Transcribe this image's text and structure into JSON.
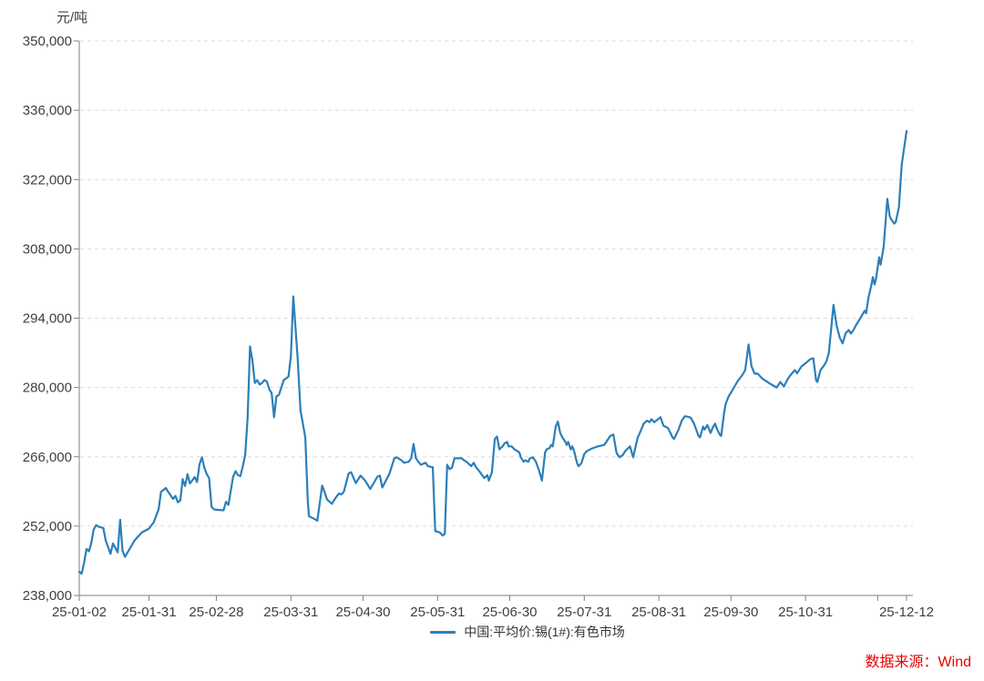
{
  "chart_data": {
    "type": "line",
    "title": "",
    "unit_label": "元/吨",
    "xlabel": "",
    "ylabel": "元/吨",
    "ylim": [
      238000,
      350000
    ],
    "y_ticks": [
      238000,
      252000,
      266000,
      280000,
      294000,
      308000,
      322000,
      336000,
      350000
    ],
    "xlim_days": [
      0,
      344
    ],
    "x_ticks": [
      {
        "day": 0,
        "label": "25-01-02"
      },
      {
        "day": 29,
        "label": "25-01-31"
      },
      {
        "day": 57,
        "label": "25-02-28"
      },
      {
        "day": 88,
        "label": "25-03-31"
      },
      {
        "day": 118,
        "label": "25-04-30"
      },
      {
        "day": 149,
        "label": "25-05-31"
      },
      {
        "day": 179,
        "label": "25-06-30"
      },
      {
        "day": 210,
        "label": "25-07-31"
      },
      {
        "day": 241,
        "label": "25-08-31"
      },
      {
        "day": 271,
        "label": "25-09-30"
      },
      {
        "day": 302,
        "label": "25-10-31"
      },
      {
        "day": 332,
        "label": ""
      },
      {
        "day": 344,
        "label": "25-12-12"
      }
    ],
    "grid": {
      "horizontal": "dashed",
      "color": "#dcdcdc"
    },
    "axis_color": "#808080",
    "tick_label_color": "#404040",
    "legend_position": "bottom-center",
    "legend": [
      {
        "label": "中国:平均价:锡(1#):有色市场",
        "color": "#2b7fb8"
      }
    ],
    "source_note": "数据来源：Wind",
    "source_color": "#e60000",
    "series": [
      {
        "name": "中国:平均价:锡(1#):有色市场",
        "color": "#2b7fb8",
        "width": 2.2,
        "points": [
          [
            0,
            242800
          ],
          [
            1,
            242400
          ],
          [
            2,
            244600
          ],
          [
            3,
            247400
          ],
          [
            4,
            246900
          ],
          [
            5,
            248600
          ],
          [
            6,
            251300
          ],
          [
            7,
            252200
          ],
          [
            8,
            251900
          ],
          [
            10,
            251600
          ],
          [
            11,
            249100
          ],
          [
            13,
            246400
          ],
          [
            14,
            248500
          ],
          [
            16,
            246700
          ],
          [
            17,
            253300
          ],
          [
            18,
            247000
          ],
          [
            19,
            245800
          ],
          [
            23,
            249100
          ],
          [
            26,
            250700
          ],
          [
            29,
            251500
          ],
          [
            31,
            252800
          ],
          [
            33,
            255400
          ],
          [
            34,
            258900
          ],
          [
            36,
            259700
          ],
          [
            37,
            258900
          ],
          [
            39,
            257500
          ],
          [
            40,
            258100
          ],
          [
            41,
            256800
          ],
          [
            42,
            257200
          ],
          [
            43,
            261500
          ],
          [
            44,
            260100
          ],
          [
            45,
            262500
          ],
          [
            46,
            260600
          ],
          [
            48,
            261900
          ],
          [
            49,
            260900
          ],
          [
            50,
            264500
          ],
          [
            51,
            265900
          ],
          [
            52,
            263800
          ],
          [
            53,
            262500
          ],
          [
            54,
            261700
          ],
          [
            55,
            255900
          ],
          [
            56,
            255400
          ],
          [
            57,
            255300
          ],
          [
            60,
            255200
          ],
          [
            61,
            256900
          ],
          [
            62,
            256300
          ],
          [
            64,
            262000
          ],
          [
            65,
            263100
          ],
          [
            66,
            262300
          ],
          [
            67,
            262100
          ],
          [
            68,
            264100
          ],
          [
            69,
            266300
          ],
          [
            70,
            274000
          ],
          [
            71,
            288300
          ],
          [
            72,
            285500
          ],
          [
            73,
            280900
          ],
          [
            74,
            281500
          ],
          [
            75,
            280600
          ],
          [
            76,
            280900
          ],
          [
            77,
            281500
          ],
          [
            78,
            281200
          ],
          [
            79,
            279700
          ],
          [
            80,
            278800
          ],
          [
            81,
            274000
          ],
          [
            82,
            278200
          ],
          [
            83,
            278500
          ],
          [
            85,
            281500
          ],
          [
            87,
            282200
          ],
          [
            88,
            286400
          ],
          [
            89,
            298400
          ],
          [
            90.8,
            285900
          ],
          [
            92,
            275400
          ],
          [
            94,
            269900
          ],
          [
            95,
            257100
          ],
          [
            95.5,
            254000
          ],
          [
            98,
            253400
          ],
          [
            99,
            253100
          ],
          [
            101,
            260200
          ],
          [
            102,
            258900
          ],
          [
            103,
            257400
          ],
          [
            105,
            256500
          ],
          [
            107,
            258000
          ],
          [
            108,
            258600
          ],
          [
            109,
            258400
          ],
          [
            110,
            258900
          ],
          [
            112,
            262600
          ],
          [
            113,
            262900
          ],
          [
            115,
            260700
          ],
          [
            117,
            262200
          ],
          [
            119,
            261100
          ],
          [
            121,
            259500
          ],
          [
            124,
            262000
          ],
          [
            125,
            262200
          ],
          [
            126,
            259800
          ],
          [
            128,
            261700
          ],
          [
            129,
            262600
          ],
          [
            131,
            265700
          ],
          [
            132,
            265900
          ],
          [
            134,
            265300
          ],
          [
            135,
            264800
          ],
          [
            137,
            265000
          ],
          [
            138,
            265700
          ],
          [
            139,
            268600
          ],
          [
            140,
            265700
          ],
          [
            141,
            265000
          ],
          [
            142,
            264400
          ],
          [
            144,
            264800
          ],
          [
            145,
            264100
          ],
          [
            147,
            263900
          ],
          [
            148,
            251000
          ],
          [
            150,
            250700
          ],
          [
            151,
            250100
          ],
          [
            152,
            250400
          ],
          [
            153,
            264400
          ],
          [
            154,
            263500
          ],
          [
            155,
            263800
          ],
          [
            156,
            265700
          ],
          [
            159,
            265700
          ],
          [
            160,
            265300
          ],
          [
            161,
            265000
          ],
          [
            163,
            264100
          ],
          [
            164,
            264800
          ],
          [
            165,
            263900
          ],
          [
            166.5,
            263000
          ],
          [
            168.4,
            261700
          ],
          [
            169.7,
            262300
          ],
          [
            170.3,
            261200
          ],
          [
            171.6,
            262900
          ],
          [
            172.8,
            269600
          ],
          [
            173.7,
            270100
          ],
          [
            174.7,
            267500
          ],
          [
            176,
            268100
          ],
          [
            176.8,
            268700
          ],
          [
            177.9,
            269000
          ],
          [
            178.5,
            268100
          ],
          [
            179.8,
            268100
          ],
          [
            181,
            267500
          ],
          [
            183,
            266900
          ],
          [
            183.6,
            265900
          ],
          [
            184.8,
            265000
          ],
          [
            185.5,
            265300
          ],
          [
            186.7,
            265000
          ],
          [
            187.4,
            265700
          ],
          [
            188.6,
            265900
          ],
          [
            189.9,
            265000
          ],
          [
            191.2,
            263200
          ],
          [
            192.4,
            261200
          ],
          [
            193.7,
            266900
          ],
          [
            194.3,
            267500
          ],
          [
            195.6,
            267800
          ],
          [
            196.2,
            268400
          ],
          [
            196.9,
            268100
          ],
          [
            198.1,
            272100
          ],
          [
            199,
            273100
          ],
          [
            200,
            270800
          ],
          [
            200.9,
            269900
          ],
          [
            202.1,
            269000
          ],
          [
            202.7,
            268400
          ],
          [
            203.3,
            269000
          ],
          [
            204.4,
            267500
          ],
          [
            205,
            268100
          ],
          [
            205.7,
            267200
          ],
          [
            207,
            264700
          ],
          [
            207.6,
            264100
          ],
          [
            208.8,
            264700
          ],
          [
            210,
            266600
          ],
          [
            211.2,
            267200
          ],
          [
            213.3,
            267700
          ],
          [
            215.6,
            268100
          ],
          [
            218.3,
            268400
          ],
          [
            220.8,
            270200
          ],
          [
            222.1,
            270500
          ],
          [
            223.4,
            266800
          ],
          [
            224.6,
            265900
          ],
          [
            225.9,
            266300
          ],
          [
            227.1,
            267200
          ],
          [
            229,
            268100
          ],
          [
            230.3,
            265900
          ],
          [
            232.2,
            269900
          ],
          [
            232.8,
            270500
          ],
          [
            234.7,
            272700
          ],
          [
            236,
            273300
          ],
          [
            237.2,
            273000
          ],
          [
            237.9,
            273600
          ],
          [
            239.1,
            273000
          ],
          [
            241.7,
            274000
          ],
          [
            242.9,
            272300
          ],
          [
            244.8,
            271800
          ],
          [
            246.7,
            269900
          ],
          [
            247.3,
            269600
          ],
          [
            249.2,
            271500
          ],
          [
            250.5,
            273300
          ],
          [
            251.8,
            274200
          ],
          [
            253,
            274100
          ],
          [
            254.3,
            273900
          ],
          [
            255.6,
            272700
          ],
          [
            257.5,
            270200
          ],
          [
            258.1,
            269900
          ],
          [
            259.4,
            272100
          ],
          [
            260,
            271500
          ],
          [
            261.2,
            272400
          ],
          [
            262.5,
            270800
          ],
          [
            263.4,
            271900
          ],
          [
            264.4,
            272700
          ],
          [
            265,
            271800
          ],
          [
            266.3,
            270500
          ],
          [
            266.9,
            270200
          ],
          [
            268.2,
            275100
          ],
          [
            268.8,
            276700
          ],
          [
            270,
            278200
          ],
          [
            271.3,
            279200
          ],
          [
            272.6,
            280300
          ],
          [
            273.8,
            281300
          ],
          [
            275.7,
            282500
          ],
          [
            276.9,
            283500
          ],
          [
            278.3,
            288700
          ],
          [
            279.5,
            284300
          ],
          [
            280.8,
            282800
          ],
          [
            282.1,
            282800
          ],
          [
            284,
            281800
          ],
          [
            285.9,
            281200
          ],
          [
            287.8,
            280600
          ],
          [
            290,
            280000
          ],
          [
            291.5,
            281100
          ],
          [
            293,
            280200
          ],
          [
            294.7,
            281800
          ],
          [
            295.9,
            282600
          ],
          [
            297.5,
            283500
          ],
          [
            298.5,
            282900
          ],
          [
            300.4,
            284300
          ],
          [
            302.3,
            285000
          ],
          [
            303.9,
            285700
          ],
          [
            305.2,
            285900
          ],
          [
            306.4,
            281400
          ],
          [
            306.9,
            281100
          ],
          [
            308.2,
            283500
          ],
          [
            309.5,
            284300
          ],
          [
            310.7,
            285300
          ],
          [
            311.7,
            287000
          ],
          [
            313.6,
            296700
          ],
          [
            314.9,
            292600
          ],
          [
            316.2,
            290100
          ],
          [
            317.4,
            288900
          ],
          [
            318.7,
            291000
          ],
          [
            320,
            291600
          ],
          [
            320.8,
            290900
          ],
          [
            321.9,
            291600
          ],
          [
            323.1,
            292700
          ],
          [
            324.4,
            293700
          ],
          [
            325.6,
            294700
          ],
          [
            326.6,
            295500
          ],
          [
            327.2,
            295000
          ],
          [
            328.1,
            298000
          ],
          [
            329.4,
            300800
          ],
          [
            330,
            302300
          ],
          [
            330.7,
            300800
          ],
          [
            331.3,
            302000
          ],
          [
            332.6,
            306300
          ],
          [
            333.2,
            304800
          ],
          [
            334.5,
            308500
          ],
          [
            336,
            318100
          ],
          [
            337,
            314600
          ],
          [
            337.6,
            314000
          ],
          [
            338.9,
            313100
          ],
          [
            339.5,
            313400
          ],
          [
            340.8,
            316400
          ],
          [
            342,
            325000
          ],
          [
            344,
            331800
          ]
        ]
      }
    ]
  }
}
